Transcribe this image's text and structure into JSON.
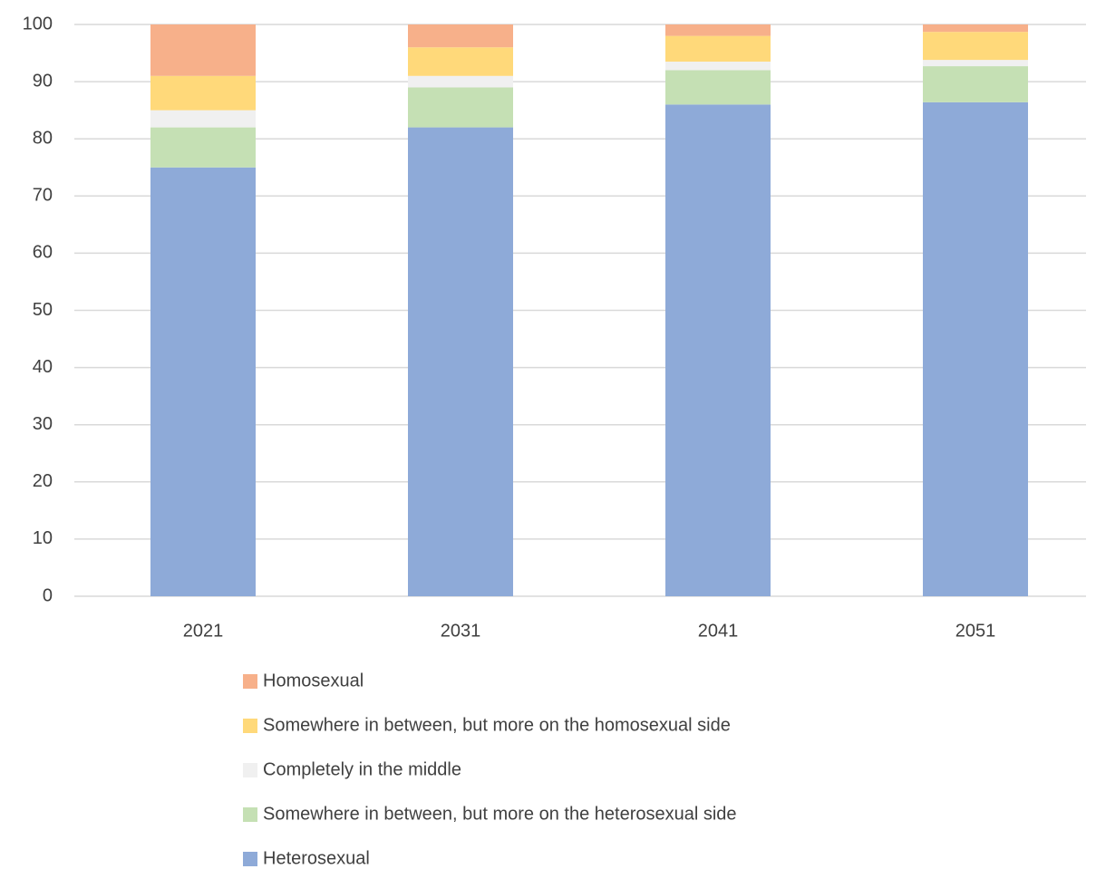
{
  "chart_data": {
    "type": "stacked_bar",
    "categories": [
      "2021",
      "2031",
      "2041",
      "2051"
    ],
    "series": [
      {
        "name": "Heterosexual",
        "color": "#8eaad8",
        "values": [
          75,
          82,
          86,
          86.4
        ]
      },
      {
        "name": "Somewhere in between, but more on the heterosexual side",
        "color": "#c5e0b4",
        "values": [
          7,
          7,
          6,
          6.3
        ]
      },
      {
        "name": "Completely in the middle",
        "color": "#f0f0f0",
        "values": [
          3,
          2,
          1.5,
          1.1
        ]
      },
      {
        "name": "Somewhere in between, but more on the homosexual side",
        "color": "#ffd97a",
        "values": [
          6,
          5,
          4.5,
          4.9
        ]
      },
      {
        "name": "Homosexual",
        "color": "#f7b08a",
        "values": [
          9,
          4,
          2,
          1.3
        ]
      }
    ],
    "ylim": [
      0,
      100
    ],
    "yticks": [
      0,
      10,
      20,
      30,
      40,
      50,
      60,
      70,
      80,
      90,
      100
    ],
    "grid": true
  }
}
